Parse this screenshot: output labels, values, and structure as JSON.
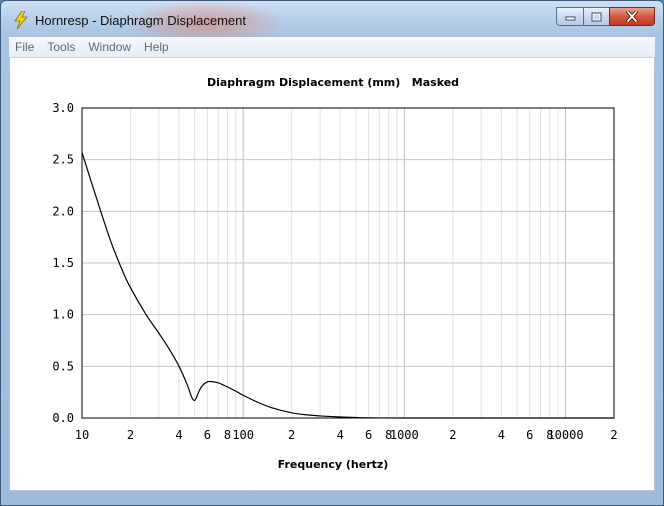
{
  "window": {
    "title": "Hornresp - Diaphragm Displacement",
    "icon": "lightning-bolt-icon",
    "minimize_glyph": "–",
    "maximize_glyph": "□",
    "close_glyph": "✕"
  },
  "menu": [
    {
      "label": "File"
    },
    {
      "label": "Tools"
    },
    {
      "label": "Window"
    },
    {
      "label": "Help"
    }
  ],
  "chart_data": {
    "type": "line",
    "title": "Diaphragm Displacement (mm)   Masked",
    "xlabel": "Frequency (hertz)",
    "ylabel": "",
    "x_scale": "log",
    "xlim": [
      10,
      20000
    ],
    "ylim": [
      0,
      3.0
    ],
    "y_ticks": [
      {
        "value": 0.0,
        "label": "0.0"
      },
      {
        "value": 0.5,
        "label": "0.5"
      },
      {
        "value": 1.0,
        "label": "1.0"
      },
      {
        "value": 1.5,
        "label": "1.5"
      },
      {
        "value": 2.0,
        "label": "2.0"
      },
      {
        "value": 2.5,
        "label": "2.5"
      },
      {
        "value": 3.0,
        "label": "3.0"
      }
    ],
    "x_ticks": [
      {
        "value": 10,
        "label": "10"
      },
      {
        "value": 20,
        "label": "2"
      },
      {
        "value": 40,
        "label": "4"
      },
      {
        "value": 60,
        "label": "6"
      },
      {
        "value": 80,
        "label": "8"
      },
      {
        "value": 100,
        "label": "100"
      },
      {
        "value": 200,
        "label": "2"
      },
      {
        "value": 400,
        "label": "4"
      },
      {
        "value": 600,
        "label": "6"
      },
      {
        "value": 800,
        "label": "8"
      },
      {
        "value": 1000,
        "label": "1000"
      },
      {
        "value": 2000,
        "label": "2"
      },
      {
        "value": 4000,
        "label": "4"
      },
      {
        "value": 6000,
        "label": "6"
      },
      {
        "value": 8000,
        "label": "8"
      },
      {
        "value": 10000,
        "label": "10000"
      },
      {
        "value": 20000,
        "label": "2"
      }
    ],
    "grid": true,
    "series": [
      {
        "color": "#000000",
        "x": [
          10,
          12,
          15,
          18,
          20,
          25,
          30,
          35,
          40,
          45,
          48,
          50,
          52,
          55,
          60,
          65,
          70,
          80,
          90,
          100,
          120,
          150,
          200,
          250,
          300,
          400,
          500,
          600,
          1000,
          10000,
          20000
        ],
        "y": [
          2.57,
          2.18,
          1.72,
          1.41,
          1.26,
          1.0,
          0.82,
          0.66,
          0.5,
          0.32,
          0.2,
          0.17,
          0.22,
          0.3,
          0.35,
          0.35,
          0.34,
          0.3,
          0.26,
          0.22,
          0.16,
          0.1,
          0.05,
          0.03,
          0.02,
          0.01,
          0.005,
          0.002,
          0.0,
          0.0,
          0.0
        ]
      }
    ]
  }
}
